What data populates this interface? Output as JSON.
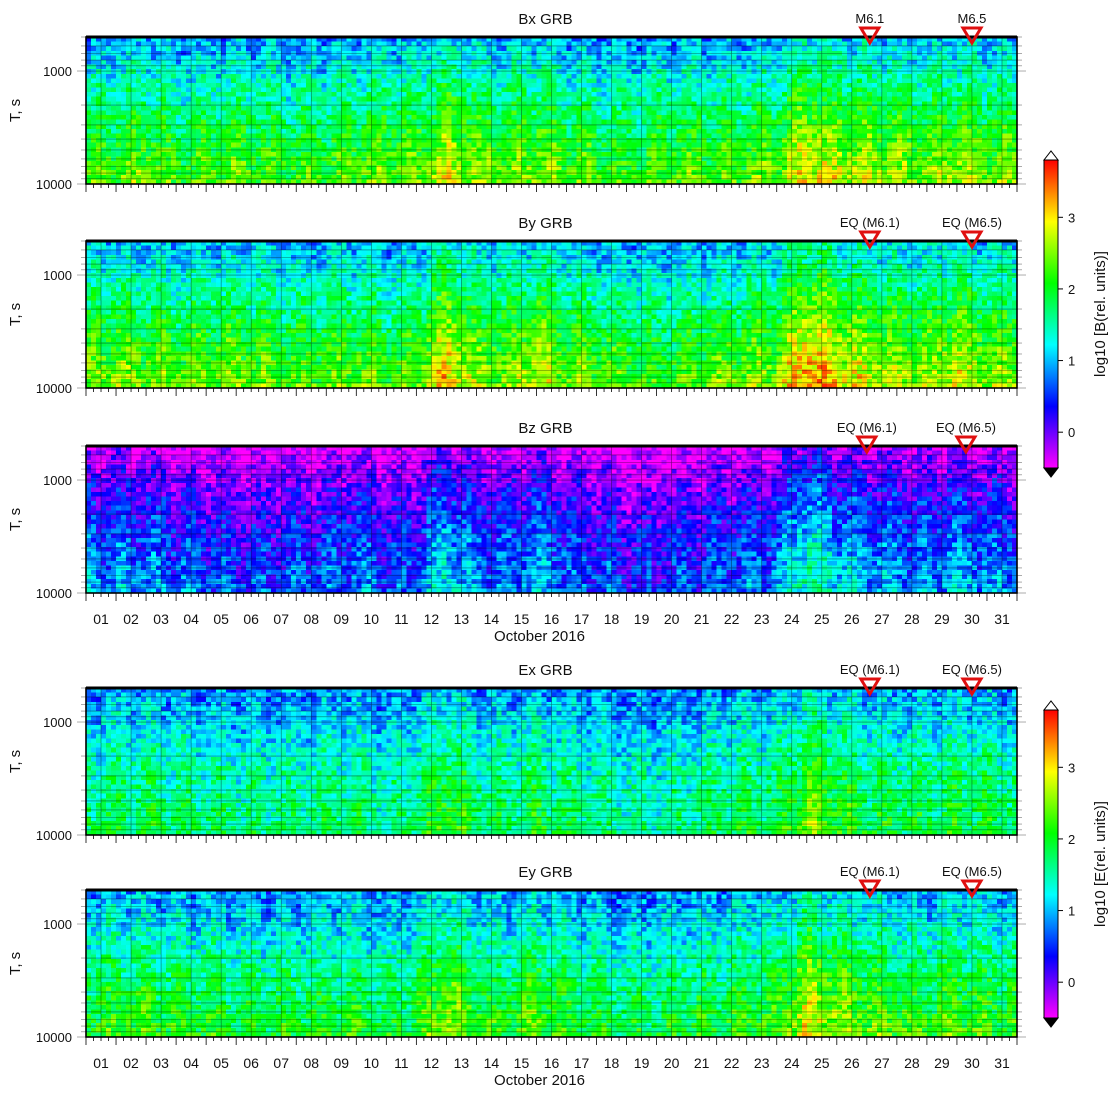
{
  "figure": {
    "axis_title_x": "October 2016",
    "y_axis_label": "T, s"
  },
  "chart_data": [
    {
      "type": "heatmap",
      "title": "Bx GRB",
      "ylabel": "T, s",
      "y_scale": "log",
      "ylim": [
        500,
        10000
      ],
      "yticks": [
        "1000",
        "10000"
      ],
      "x_ticklabels": [
        "01",
        "02",
        "03",
        "04",
        "05",
        "06",
        "07",
        "08",
        "09",
        "10",
        "11",
        "12",
        "13",
        "14",
        "15",
        "16",
        "17",
        "18",
        "19",
        "20",
        "21",
        "22",
        "23",
        "24",
        "25",
        "26",
        "27",
        "28",
        "29",
        "30",
        "31"
      ],
      "x_ticks_shown": false,
      "xlabel": "",
      "markers": [
        {
          "label": "M6.1",
          "day": 26.6
        },
        {
          "label": "M6.5",
          "day": 30.0
        }
      ],
      "colorbar": "B",
      "day_intensity": [
        2.0,
        2.2,
        2.3,
        2.0,
        2.1,
        2.2,
        2.1,
        2.0,
        2.1,
        2.2,
        2.3,
        2.2,
        2.7,
        2.4,
        2.3,
        2.4,
        2.2,
        2.1,
        2.0,
        2.1,
        2.2,
        2.1,
        2.2,
        2.3,
        2.9,
        2.6,
        2.5,
        2.4,
        2.3,
        2.5,
        2.3
      ],
      "period_profile": [
        {
          "period": 500,
          "level": 0.9
        },
        {
          "period": 1000,
          "level": 1.3
        },
        {
          "period": 3000,
          "level": 1.9
        },
        {
          "period": 10000,
          "level": 2.4
        }
      ]
    },
    {
      "type": "heatmap",
      "title": "By GRB",
      "ylabel": "T, s",
      "y_scale": "log",
      "ylim": [
        500,
        10000
      ],
      "yticks": [
        "1000",
        "10000"
      ],
      "x_ticklabels": [
        "01",
        "02",
        "03",
        "04",
        "05",
        "06",
        "07",
        "08",
        "09",
        "10",
        "11",
        "12",
        "13",
        "14",
        "15",
        "16",
        "17",
        "18",
        "19",
        "20",
        "21",
        "22",
        "23",
        "24",
        "25",
        "26",
        "27",
        "28",
        "29",
        "30",
        "31"
      ],
      "x_ticks_shown": false,
      "xlabel": "",
      "markers": [
        {
          "label": "EQ (M6.1)",
          "day": 26.6
        },
        {
          "label": "EQ (M6.5)",
          "day": 30.0
        }
      ],
      "colorbar": "B",
      "day_intensity": [
        2.1,
        2.3,
        2.2,
        2.1,
        2.2,
        2.2,
        2.1,
        2.0,
        2.1,
        2.2,
        2.0,
        2.1,
        2.9,
        2.3,
        2.2,
        2.6,
        2.2,
        2.1,
        2.0,
        1.9,
        2.0,
        2.1,
        2.2,
        2.3,
        3.2,
        2.8,
        2.5,
        2.4,
        2.3,
        2.6,
        2.3
      ],
      "period_profile": [
        {
          "period": 500,
          "level": 1.0
        },
        {
          "period": 1000,
          "level": 1.4
        },
        {
          "period": 3000,
          "level": 2.0
        },
        {
          "period": 10000,
          "level": 2.5
        }
      ]
    },
    {
      "type": "heatmap",
      "title": "Bz GRB",
      "ylabel": "T, s",
      "y_scale": "log",
      "ylim": [
        500,
        10000
      ],
      "yticks": [
        "1000",
        "10000"
      ],
      "x_ticklabels": [
        "01",
        "02",
        "03",
        "04",
        "05",
        "06",
        "07",
        "08",
        "09",
        "10",
        "11",
        "12",
        "13",
        "14",
        "15",
        "16",
        "17",
        "18",
        "19",
        "20",
        "21",
        "22",
        "23",
        "24",
        "25",
        "26",
        "27",
        "28",
        "29",
        "30",
        "31"
      ],
      "x_ticks_shown": true,
      "xlabel": "October 2016",
      "markers": [
        {
          "label": "EQ (M6.1)",
          "day": 26.5
        },
        {
          "label": "EQ (M6.5)",
          "day": 29.8
        }
      ],
      "colorbar": "B",
      "day_intensity": [
        1.4,
        1.5,
        1.4,
        1.3,
        1.2,
        1.1,
        1.1,
        1.2,
        1.2,
        1.4,
        1.1,
        1.2,
        1.9,
        1.4,
        1.3,
        1.6,
        1.3,
        1.2,
        1.0,
        1.0,
        1.1,
        1.2,
        1.3,
        1.4,
        2.2,
        1.8,
        1.6,
        1.5,
        1.4,
        1.6,
        1.4
      ],
      "period_profile": [
        {
          "period": 500,
          "level": 0.1
        },
        {
          "period": 1000,
          "level": 0.6
        },
        {
          "period": 3000,
          "level": 1.2
        },
        {
          "period": 10000,
          "level": 1.7
        }
      ]
    },
    {
      "type": "heatmap",
      "title": "Ex GRB",
      "ylabel": "T, s",
      "y_scale": "log",
      "ylim": [
        500,
        10000
      ],
      "yticks": [
        "1000",
        "10000"
      ],
      "x_ticklabels": [
        "01",
        "02",
        "03",
        "04",
        "05",
        "06",
        "07",
        "08",
        "09",
        "10",
        "11",
        "12",
        "13",
        "14",
        "15",
        "16",
        "17",
        "18",
        "19",
        "20",
        "21",
        "22",
        "23",
        "24",
        "25",
        "26",
        "27",
        "28",
        "29",
        "30",
        "31"
      ],
      "x_ticks_shown": false,
      "xlabel": "",
      "markers": [
        {
          "label": "EQ (M6.1)",
          "day": 26.6
        },
        {
          "label": "EQ (M6.5)",
          "day": 30.0
        }
      ],
      "colorbar": "E",
      "day_intensity": [
        1.9,
        2.0,
        2.0,
        1.9,
        1.9,
        1.8,
        1.8,
        1.8,
        1.9,
        1.9,
        1.7,
        1.9,
        2.4,
        2.0,
        1.9,
        2.1,
        1.9,
        1.8,
        1.7,
        1.7,
        1.8,
        1.9,
        2.0,
        2.0,
        2.6,
        2.3,
        2.1,
        2.0,
        2.0,
        2.1,
        2.0
      ],
      "period_profile": [
        {
          "period": 500,
          "level": 1.0
        },
        {
          "period": 1000,
          "level": 1.3
        },
        {
          "period": 3000,
          "level": 1.8
        },
        {
          "period": 10000,
          "level": 2.1
        }
      ]
    },
    {
      "type": "heatmap",
      "title": "Ey GRB",
      "ylabel": "T, s",
      "y_scale": "log",
      "ylim": [
        500,
        10000
      ],
      "yticks": [
        "1000",
        "10000"
      ],
      "x_ticklabels": [
        "01",
        "02",
        "03",
        "04",
        "05",
        "06",
        "07",
        "08",
        "09",
        "10",
        "11",
        "12",
        "13",
        "14",
        "15",
        "16",
        "17",
        "18",
        "19",
        "20",
        "21",
        "22",
        "23",
        "24",
        "25",
        "26",
        "27",
        "28",
        "29",
        "30",
        "31"
      ],
      "x_ticks_shown": true,
      "xlabel": "October 2016",
      "markers": [
        {
          "label": "EQ (M6.1)",
          "day": 26.6
        },
        {
          "label": "EQ (M6.5)",
          "day": 30.0
        }
      ],
      "colorbar": "E",
      "day_intensity": [
        2.0,
        2.1,
        2.1,
        2.0,
        2.0,
        1.9,
        1.9,
        1.9,
        2.0,
        2.0,
        1.8,
        2.0,
        2.6,
        2.1,
        2.0,
        2.3,
        2.0,
        1.9,
        1.8,
        1.8,
        1.9,
        2.0,
        2.1,
        2.1,
        2.9,
        2.5,
        2.3,
        2.2,
        2.1,
        2.3,
        2.1
      ],
      "period_profile": [
        {
          "period": 500,
          "level": 1.0
        },
        {
          "period": 1000,
          "level": 1.3
        },
        {
          "period": 3000,
          "level": 1.9
        },
        {
          "period": 10000,
          "level": 2.3
        }
      ]
    }
  ],
  "colorbars": {
    "B": {
      "label": "log10 [B(rel. units)]",
      "range": [
        -0.5,
        3.8
      ],
      "ticks": [
        "0",
        "1",
        "2",
        "3"
      ],
      "tick_values": [
        0,
        1,
        2,
        3
      ]
    },
    "E": {
      "label": "log10 [E(rel. units)]",
      "range": [
        -0.5,
        3.8
      ],
      "ticks": [
        "0",
        "1",
        "2",
        "3"
      ],
      "tick_values": [
        0,
        1,
        2,
        3
      ]
    }
  },
  "colors": {
    "colormap": [
      "#ff00ff",
      "#0000ff",
      "#00ffff",
      "#00ff00",
      "#ffff00",
      "#ff0000"
    ],
    "marker": "#e01010",
    "frame": "#000000"
  }
}
